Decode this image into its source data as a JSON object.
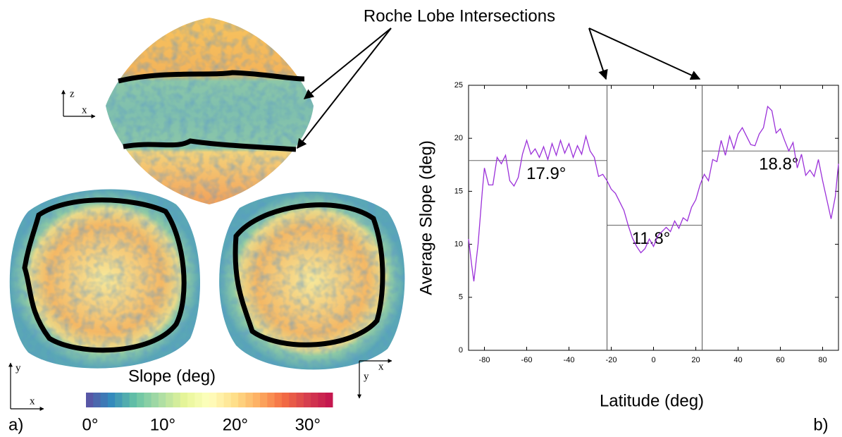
{
  "chart_data": {
    "type": "line",
    "annotation": "Roche Lobe Intersections",
    "panel_label": "b)",
    "xlabel": "Latitude (deg)",
    "ylabel": "Average Slope (deg)",
    "x": [
      -87.5,
      -86,
      -85,
      -83,
      -81,
      -80,
      -78,
      -76,
      -74,
      -72,
      -70,
      -68,
      -66,
      -64,
      -62,
      -60,
      -58,
      -56,
      -54,
      -52,
      -50,
      -48,
      -46,
      -44,
      -42,
      -40,
      -38,
      -36,
      -34,
      -32,
      -30,
      -28,
      -26,
      -24,
      -22,
      -20,
      -18,
      -16,
      -14,
      -12,
      -10,
      -8,
      -6,
      -4,
      -2,
      0,
      2,
      4,
      6,
      8,
      10,
      12,
      14,
      16,
      18,
      20,
      22,
      24,
      26,
      28,
      30,
      32,
      34,
      36,
      38,
      40,
      42,
      44,
      46,
      48,
      50,
      52,
      54,
      56,
      58,
      60,
      62,
      64,
      66,
      68,
      70,
      72,
      74,
      76,
      78,
      80,
      82,
      84,
      86,
      87.5
    ],
    "series": [
      {
        "color": "#9b30d9",
        "values": [
          10.5,
          8,
          6.5,
          10,
          15,
          17.2,
          15.6,
          15.6,
          18.2,
          17.6,
          18.4,
          16,
          15.5,
          16.3,
          18.5,
          19.8,
          18.5,
          19,
          18.2,
          19.2,
          18,
          19.5,
          18.4,
          19.8,
          18.6,
          19.5,
          18.2,
          19.3,
          18.5,
          20.2,
          18.8,
          18.2,
          16.4,
          16.6,
          16,
          15.2,
          14.8,
          14,
          13.2,
          11.8,
          10.6,
          9.8,
          9.2,
          9.6,
          10.5,
          9.8,
          10.8,
          11.2,
          11.6,
          11.2,
          12.2,
          11.5,
          12.5,
          12.2,
          13.5,
          14.2,
          15.6,
          16.6,
          16,
          18,
          17.8,
          19.8,
          18.4,
          20.2,
          19,
          20.4,
          21,
          20.2,
          19.4,
          19.3,
          20.4,
          21,
          23,
          22.6,
          20.5,
          20.9,
          19.8,
          18.8,
          19.6,
          17.2,
          18.5,
          16.5,
          17,
          16.4,
          18,
          16,
          14.2,
          12.4,
          14.5,
          17.6
        ]
      }
    ],
    "xlim": [
      -87.5,
      87.5
    ],
    "ylim": [
      0,
      25
    ],
    "xticks": [
      -80,
      -60,
      -40,
      -20,
      0,
      20,
      40,
      60,
      80
    ],
    "yticks": [
      0,
      5,
      10,
      15,
      20,
      25
    ],
    "roche_lines": [
      -22,
      23
    ],
    "mean_segments": [
      {
        "from": -87.5,
        "to": -22,
        "value": 17.9,
        "label": "17.9°"
      },
      {
        "from": -22,
        "to": 23,
        "value": 11.8,
        "label": "11.8°"
      },
      {
        "from": 23,
        "to": 87.5,
        "value": 18.8,
        "label": "18.8°"
      }
    ]
  },
  "figure_a": {
    "panel_label": "a)",
    "axes_top": [
      "z",
      "x"
    ],
    "axes_left": [
      "y",
      "x"
    ],
    "axes_right": [
      "x",
      "y"
    ],
    "colorbar": {
      "label": "Slope (deg)",
      "lim": [
        0,
        34
      ],
      "ticks": [
        {
          "value": 0,
          "label": "0°"
        },
        {
          "value": 10,
          "label": "10°"
        },
        {
          "value": 20,
          "label": "20°"
        },
        {
          "value": 30,
          "label": "30°"
        }
      ],
      "colors": [
        "#5e4fa2",
        "#3288bd",
        "#66c2a5",
        "#abdda4",
        "#e6f598",
        "#ffffbf",
        "#fee08b",
        "#fdae61",
        "#f46d43",
        "#d53e4f",
        "#c2124f"
      ]
    }
  }
}
